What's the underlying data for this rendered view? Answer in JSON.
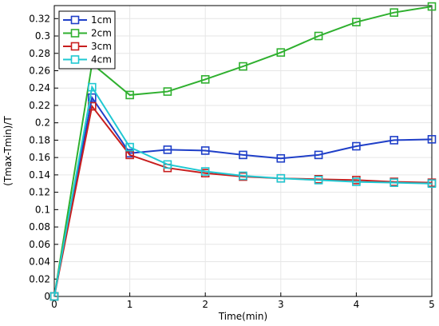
{
  "chart_data": {
    "type": "line",
    "title": "",
    "xlabel": "Time(min)",
    "ylabel": "(Tmax-Tmin)/T",
    "xlim": [
      0,
      5
    ],
    "ylim": [
      0,
      0.335
    ],
    "xticks": [
      0,
      1,
      2,
      3,
      4,
      5
    ],
    "yticks": [
      0,
      0.02,
      0.04,
      0.06,
      0.08,
      0.1,
      0.12,
      0.14,
      0.16,
      0.18,
      0.2,
      0.22,
      0.24,
      0.26,
      0.28,
      0.3,
      0.32
    ],
    "grid": true,
    "legend_position": "top-left",
    "x": [
      0,
      0.5,
      1,
      1.5,
      2,
      2.5,
      3,
      3.5,
      4,
      4.5,
      5
    ],
    "series": [
      {
        "name": "1cm",
        "color": "#1f3fc8",
        "marker": "square",
        "values": [
          0,
          0.229,
          0.165,
          0.169,
          0.168,
          0.163,
          0.159,
          0.163,
          0.173,
          0.18,
          0.181
        ]
      },
      {
        "name": "2cm",
        "color": "#2fb02f",
        "marker": "square",
        "values": [
          0,
          0.268,
          0.232,
          0.236,
          0.25,
          0.265,
          0.281,
          0.3,
          0.316,
          0.327,
          0.334
        ]
      },
      {
        "name": "3cm",
        "color": "#c81e1e",
        "marker": "square",
        "values": [
          0,
          0.219,
          0.163,
          0.148,
          0.142,
          0.138,
          0.136,
          0.135,
          0.134,
          0.132,
          0.131
        ]
      },
      {
        "name": "4cm",
        "color": "#1fc8d2",
        "marker": "square",
        "values": [
          0,
          0.241,
          0.172,
          0.152,
          0.144,
          0.139,
          0.136,
          0.134,
          0.132,
          0.131,
          0.13
        ]
      }
    ]
  }
}
